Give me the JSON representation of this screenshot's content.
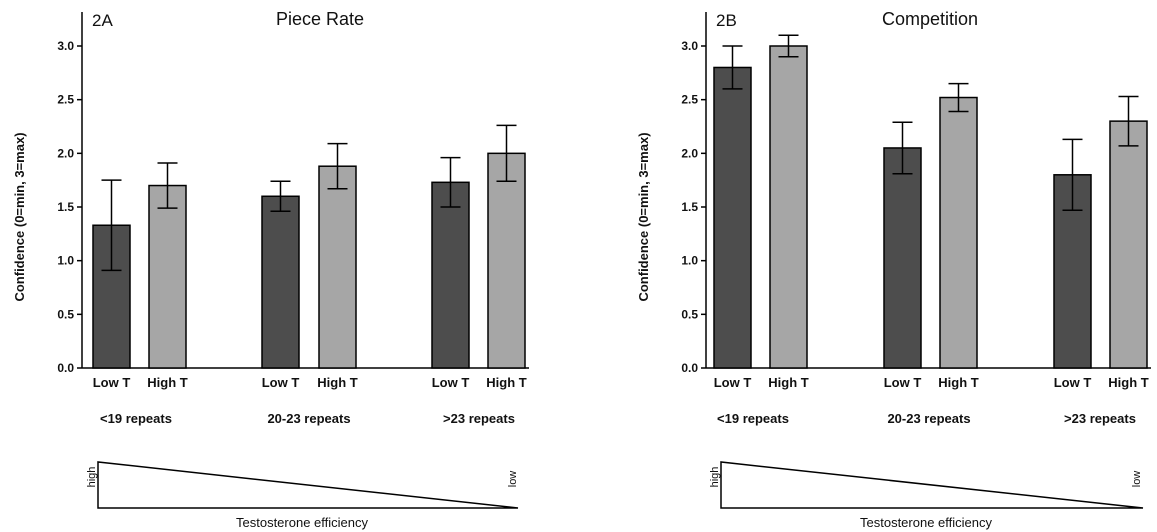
{
  "chart_data": [
    {
      "type": "bar",
      "panel_id": "2A",
      "title": "Piece Rate",
      "ylabel": "Confidence (0=min, 3=max)",
      "xlabel": "",
      "ylim": [
        0,
        3.0
      ],
      "yticks": [
        "0.0",
        "0.5",
        "1.0",
        "1.5",
        "2.0",
        "2.5",
        "3.0"
      ],
      "error_bars": true,
      "grid": false,
      "groups": [
        {
          "label": "<19 repeats",
          "bars": [
            {
              "category": "Low T",
              "value": 1.33,
              "error": 0.42,
              "color": "#4d4d4d"
            },
            {
              "category": "High T",
              "value": 1.7,
              "error": 0.21,
              "color": "#a6a6a6"
            }
          ]
        },
        {
          "label": "20-23 repeats",
          "bars": [
            {
              "category": "Low T",
              "value": 1.6,
              "error": 0.14,
              "color": "#4d4d4d"
            },
            {
              "category": "High T",
              "value": 1.88,
              "error": 0.21,
              "color": "#a6a6a6"
            }
          ]
        },
        {
          "label": ">23 repeats",
          "bars": [
            {
              "category": "Low T",
              "value": 1.73,
              "error": 0.23,
              "color": "#4d4d4d"
            },
            {
              "category": "High T",
              "value": 2.0,
              "error": 0.26,
              "color": "#a6a6a6"
            }
          ]
        }
      ],
      "indicator": {
        "high_label": "high",
        "low_label": "low",
        "caption": "Testosterone efficiency"
      }
    },
    {
      "type": "bar",
      "panel_id": "2B",
      "title": "Competition",
      "ylabel": "Confidence (0=min, 3=max)",
      "xlabel": "",
      "ylim": [
        0,
        3.0
      ],
      "yticks": [
        "0.0",
        "0.5",
        "1.0",
        "1.5",
        "2.0",
        "2.5",
        "3.0"
      ],
      "error_bars": true,
      "grid": false,
      "groups": [
        {
          "label": "<19 repeats",
          "bars": [
            {
              "category": "Low T",
              "value": 2.8,
              "error": 0.2,
              "color": "#4d4d4d"
            },
            {
              "category": "High T",
              "value": 3.0,
              "error": 0.1,
              "color": "#a6a6a6"
            }
          ]
        },
        {
          "label": "20-23 repeats",
          "bars": [
            {
              "category": "Low T",
              "value": 2.05,
              "error": 0.24,
              "color": "#4d4d4d"
            },
            {
              "category": "High T",
              "value": 2.52,
              "error": 0.13,
              "color": "#a6a6a6"
            }
          ]
        },
        {
          "label": ">23 repeats",
          "bars": [
            {
              "category": "Low T",
              "value": 1.8,
              "error": 0.33,
              "color": "#4d4d4d"
            },
            {
              "category": "High T",
              "value": 2.3,
              "error": 0.23,
              "color": "#a6a6a6"
            }
          ]
        }
      ],
      "indicator": {
        "high_label": "high",
        "low_label": "low",
        "caption": "Testosterone efficiency"
      }
    }
  ]
}
